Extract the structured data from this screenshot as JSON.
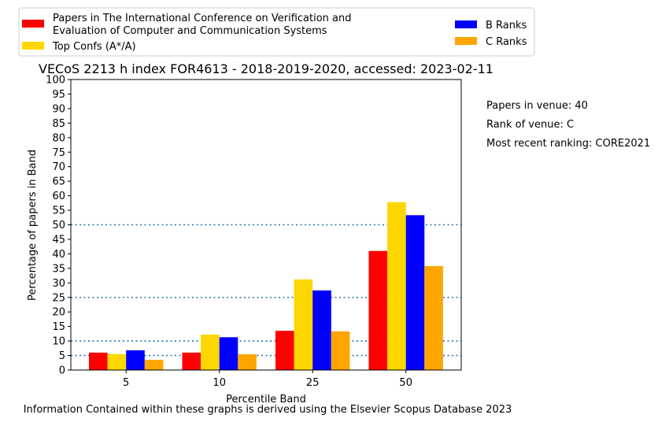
{
  "chart_data": {
    "type": "bar",
    "title": "VECoS 2213 h index FOR4613 - 2018-2019-2020, accessed: 2023-02-11",
    "xlabel": "Percentile Band",
    "ylabel": "Percentage of papers in Band",
    "categories": [
      "5",
      "10",
      "25",
      "50"
    ],
    "ylim": [
      0,
      100
    ],
    "yticks": [
      0,
      5,
      10,
      15,
      20,
      25,
      30,
      35,
      40,
      45,
      50,
      55,
      60,
      65,
      70,
      75,
      80,
      85,
      90,
      95,
      100
    ],
    "reference_lines": [
      5,
      10,
      25,
      50
    ],
    "legend_position": "top",
    "series": [
      {
        "name": "Papers in The International Conference on Verification and Evaluation of Computer and Communication Systems",
        "color": "#ff0000",
        "values": [
          6,
          6,
          13.5,
          41
        ]
      },
      {
        "name": "Top Confs (A*/A)",
        "color": "#ffd700",
        "values": [
          5.5,
          12.2,
          31.2,
          57.8
        ]
      },
      {
        "name": "B Ranks",
        "color": "#0000ff",
        "values": [
          6.8,
          11.3,
          27.4,
          53.3
        ]
      },
      {
        "name": "C Ranks",
        "color": "#ffa500",
        "values": [
          3.5,
          5.4,
          13.3,
          35.8
        ]
      }
    ]
  },
  "notes": {
    "papers": "Papers in venue: 40",
    "rank": "Rank of venue: C",
    "recent": "Most recent ranking: CORE2021"
  },
  "footer": "Information Contained within these graphs is derived using the Elsevier Scopus Database 2023"
}
